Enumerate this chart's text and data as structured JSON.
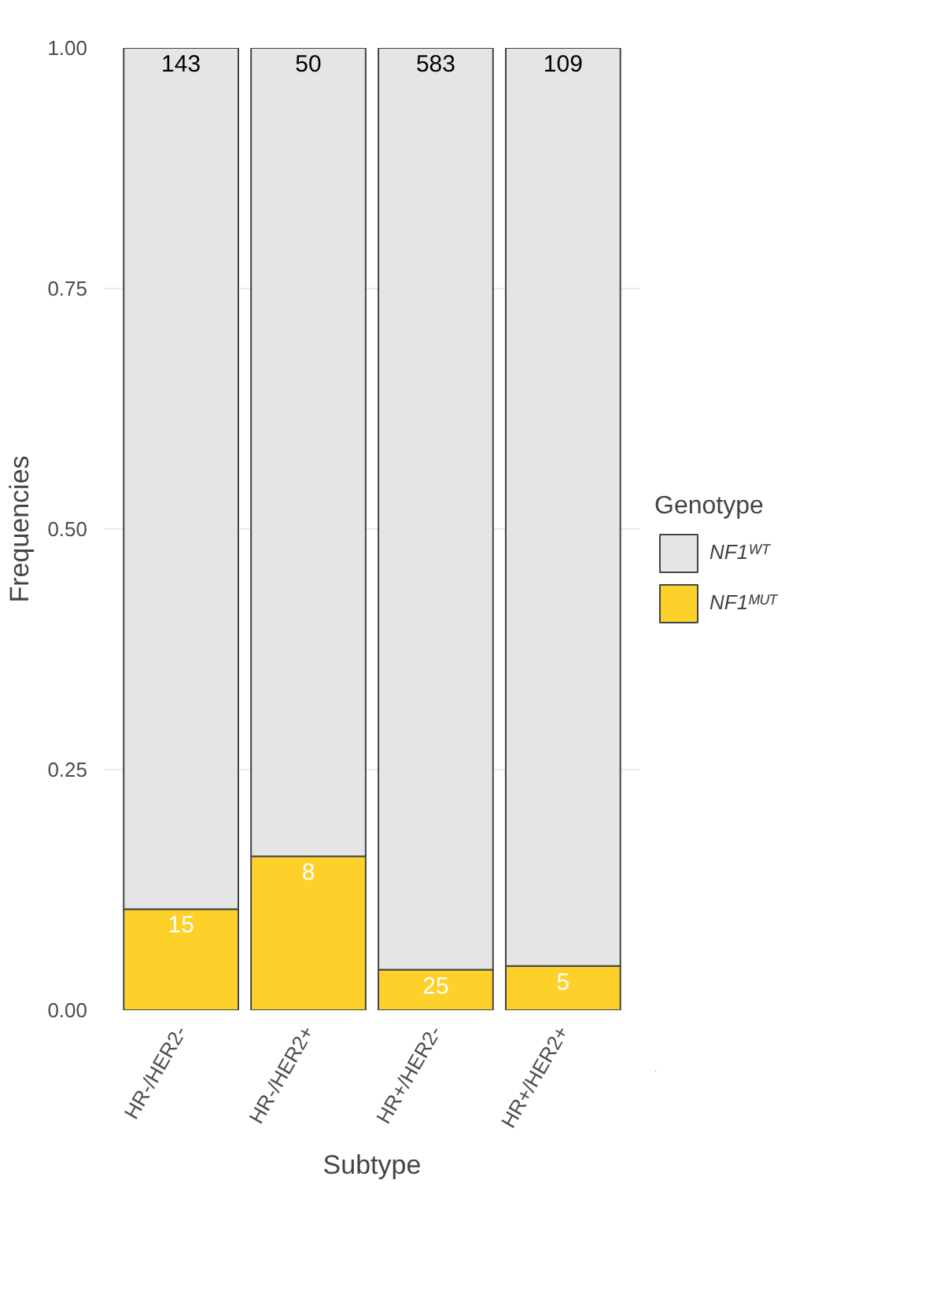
{
  "chart_data": {
    "type": "bar",
    "stacked": true,
    "xlabel": "Subtype",
    "ylabel": "Frequencies",
    "legend_title": "Genotype",
    "categories": [
      "HR-/HER2-",
      "HR-/HER2+",
      "HR+/HER2-",
      "HR+/HER2+"
    ],
    "series": [
      {
        "name": "NF1ᴹᵁᵀ",
        "color": "#fdd12a",
        "values": [
          0.105,
          0.16,
          0.042,
          0.046
        ]
      },
      {
        "name": "NF1ᵂᵀ",
        "color": "#e5e5e5",
        "values": [
          0.895,
          0.84,
          0.958,
          0.954
        ]
      }
    ],
    "annotations": [
      {
        "text": "15",
        "x": "HR-/HER2-",
        "y": 0.105
      },
      {
        "text": "8",
        "x": "HR-/HER2+",
        "y": 0.16
      },
      {
        "text": "25",
        "x": "HR+/HER2-",
        "y": 0.042
      },
      {
        "text": "5",
        "x": "HR+/HER2+",
        "y": 0.046
      },
      {
        "text": "143",
        "x": "HR-/HER2-",
        "y": 1
      },
      {
        "text": "50",
        "x": "HR-/HER2+",
        "y": 1
      },
      {
        "text": "583",
        "x": "HR+/HER2-",
        "y": 1
      },
      {
        "text": "109",
        "x": "HR+/HER2+",
        "y": 1
      }
    ],
    "ylim": [
      0,
      1
    ],
    "yticks": [
      {
        "value": 0,
        "label": "0.00"
      },
      {
        "value": 0.25,
        "label": "0.25"
      },
      {
        "value": 0.5,
        "label": "0.50"
      },
      {
        "value": 0.75,
        "label": "0.75"
      },
      {
        "value": 1,
        "label": "1.00"
      }
    ],
    "grid": true,
    "legend": "right"
  }
}
